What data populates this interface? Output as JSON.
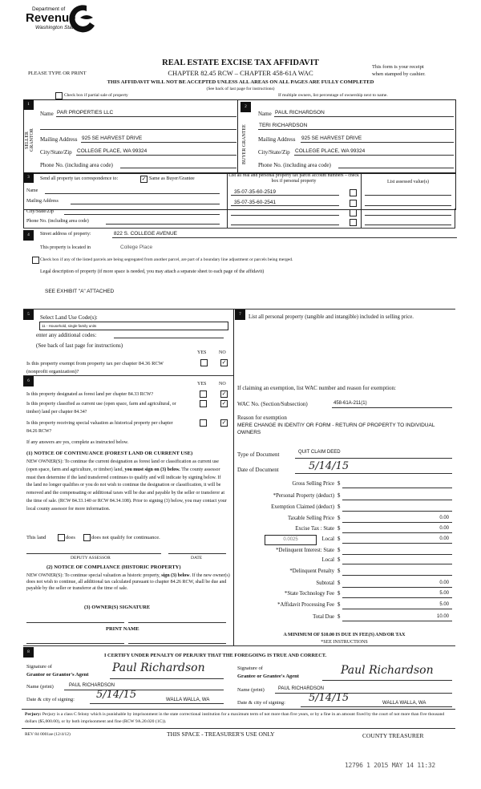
{
  "header": {
    "dept_of": "Department of",
    "revenue": "Revenue",
    "state": "Washington State",
    "title": "REAL ESTATE EXCISE TAX AFFIDAVIT",
    "chapters": "CHAPTER 82.45 RCW – CHAPTER 458-61A WAC",
    "type_or_print": "PLEASE TYPE OR PRINT",
    "receipt": "This form is your receipt",
    "receipt2": "when stamped by cashier.",
    "warning": "THIS AFFIDAVIT WILL NOT BE ACCEPTED UNLESS ALL AREAS ON ALL PAGES ARE FULLY COMPLETED",
    "see_back": "(See back of last page for instructions)",
    "partial_sale": "Check box if partial sale of property",
    "multiple_owners": "If multiple owners, list percentage of ownership next to name."
  },
  "seller": {
    "num": "1",
    "label": "SELLER GRANTOR",
    "name_label": "Name",
    "name": "PAR PROPERTIES LLC",
    "mail_label": "Mailing Address",
    "mail": "925 SE HARVEST DRIVE",
    "city_label": "City/State/Zip",
    "city": "COLLEGE PLACE, WA  99324",
    "phone_label": "Phone No. (including area code)"
  },
  "buyer": {
    "num": "2",
    "label": "BUYER GRANTEE",
    "name_label": "Name",
    "name": "PAUL RICHARDSON",
    "name2": "TERI RICHARDSON",
    "mail_label": "Mailing Address",
    "mail": "925 SE HARVEST DRIVE",
    "city_label": "City/State/Zip",
    "city": "COLLEGE PLACE, WA  99324",
    "phone_label": "Phone No. (including area code)"
  },
  "section3": {
    "num": "3",
    "send_label": "Send all property tax correspondence to:",
    "same_label": "Same as Buyer/Grantee",
    "same_checked": true,
    "name": "Name",
    "mail": "Mailing Address",
    "city": "City/State/Zip",
    "phone": "Phone No. (including area code)",
    "parcel_header": "List all real and personal property tax parcel account numbers – check box if personal property",
    "assessed_header": "List assessed value(s)",
    "parcels": [
      "35-07-35-60-2519",
      "35-07-35-60-2541",
      "",
      ""
    ]
  },
  "section4": {
    "num": "4",
    "street_label": "Street address of property:",
    "street": "822 S. COLLEGE AVENUE",
    "located_label": "This property is located in",
    "located": "College Place",
    "segregated": "Check box if any of the listed parcels are being segregated from another parcel, are part of a boundary line adjustment or parcels being merged.",
    "legal_label": "Legal description of property (if more space is needed, you may attach a separate sheet to each page of the affidavit)",
    "legal": "SEE EXHIBIT \"A\" ATTACHED"
  },
  "section5": {
    "num": "5",
    "select_label": "Select Land Use Code(s):",
    "code": "11 - Household, single family units",
    "additional": "enter any additional codes:",
    "see_back": "(See back of last page for instructions)",
    "yes": "YES",
    "no": "NO",
    "exempt_q": "Is this property exempt from property tax per chapter 84.36 RCW (nonprofit organization)?",
    "exempt_answer": "NO"
  },
  "section6": {
    "num": "6",
    "yes": "YES",
    "no": "NO",
    "q1": "Is this property designated as forest land per chapter 84.33 RCW?",
    "q2": "Is this property classified as current use (open space, farm and agricultural, or timber) land per chapter 84.34?",
    "q3": "Is this property receiving special valuation as historical property per chapter 84.26 RCW?",
    "answers": [
      "NO",
      "NO",
      "NO"
    ],
    "if_any": "If any answers are yes, complete as instructed below.",
    "notice1_title": "(1) NOTICE OF CONTINUANCE (FOREST LAND OR CURRENT USE)",
    "notice1_a": "NEW OWNER(S): To continue the current designation as forest land or classification as current use (open space, farm and agriculture, or timber) land, ",
    "notice1_b": "you must sign on (3) below.",
    "notice1_c": " The county assessor must then determine if the land transferred continues to qualify and will indicate by signing below. If the land no longer qualifies or you do not wish to continue the designation or classification, it will be removed and the compensating or additional taxes will be due and payable by the seller or transferor at the time of sale. (RCW 84.33.140 or RCW 84.34.108). Prior to signing (3) below, you may contact your local county assessor for more information.",
    "this_land": "This land",
    "does": "does",
    "does_not": "does not qualify for continuance.",
    "deputy": "DEPUTY ASSESSOR",
    "date": "DATE",
    "notice2_title": "(2) NOTICE OF COMPLIANCE (HISTORIC PROPERTY)",
    "notice2_a": "NEW OWNER(S): To continue special valuation as historic property, ",
    "notice2_b": "sign (3) below",
    "notice2_c": ". If the new owner(s) does not wish to continue, all additional tax calculated pursuant to chapter 84.26 RCW, shall be due and payable by the seller or transferor at the time of sale.",
    "owner_sig": "(3)  OWNER(S) SIGNATURE",
    "print_name": "PRINT NAME"
  },
  "section7": {
    "num": "7",
    "personal_label": "List all  personal property (tangible and intangible) included in selling price.",
    "exemption_label": "If claiming an exemption, list WAC number and reason for exemption:",
    "wac_label": "WAC No. (Section/Subsection)",
    "wac": "458-61A-211(1)",
    "reason_label": "Reason for exemption",
    "reason": "MERE CHANGE IN IDENTIY OR FORM - RETURN OF PROPERTY TO INDIVIDUAL OWNERS",
    "doc_type_label": "Type of Document",
    "doc_type": "QUIT CLAIM DEED",
    "doc_date_label": "Date of Document",
    "doc_date": "5/14/15",
    "local_rate": "0.0025",
    "fees": [
      {
        "label": "Gross Selling Price",
        "value": ""
      },
      {
        "label": "*Personal Property (deduct)",
        "value": ""
      },
      {
        "label": "Exemption Claimed (deduct)",
        "value": ""
      },
      {
        "label": "Taxable Selling Price",
        "value": "0.00"
      },
      {
        "label": "Excise Tax : State",
        "value": "0.00"
      },
      {
        "label": "Local",
        "value": "0.00"
      },
      {
        "label": "*Delinquent Interest: State",
        "value": ""
      },
      {
        "label": "Local",
        "value": ""
      },
      {
        "label": "*Delinquent Penalty",
        "value": ""
      },
      {
        "label": "Subtotal",
        "value": "0.00"
      },
      {
        "label": "*State Technology Fee",
        "value": "5.00"
      },
      {
        "label": "*Affidavit Processing Fee",
        "value": "5.00"
      },
      {
        "label": "Total Due",
        "value": "10.00"
      }
    ],
    "currency": "$",
    "minimum": "A MINIMUM OF $10.00 IS DUE IN FEE(S) AND/OR TAX",
    "see_instr": "*SEE INSTRUCTIONS"
  },
  "section8": {
    "num": "8",
    "certify": "I CERTIFY UNDER PENALTY OF PERJURY THAT THE FOREGOING IS TRUE AND CORRECT.",
    "sig_of": "Signature of",
    "grantor_agent": "Grantor or Grantor's Agent",
    "grantee_agent": "Grantee or Grantee's Agent",
    "name_print": "Name (print)",
    "grantor_name": "PAUL RICHARDSON",
    "grantee_name": "PAUL RICHARDSON",
    "date_city": "Date & city of signing:",
    "grantor_date": "5/14/15",
    "grantor_city": "WALLA WALLA, WA",
    "grantee_date": "5/14/15",
    "grantee_city": "WALLA WALLA, WA",
    "signature": "Paul Richardson"
  },
  "footer": {
    "perjury_label": "Perjury:",
    "perjury": " Perjury is a class C felony which is punishable by imprisonment in the state correctional institution for a maximum term of not more than five years, or by a fine in an amount fixed by the court of not more than five thousand dollars ($5,000.00), or by both imprisonment and fine (RCW 9A.20.020 (1C)).",
    "rev": "REV 84 0001ae (12/4/12)",
    "treasurer_only": "THIS SPACE - TREASURER'S USE ONLY",
    "county_treasurer": "COUNTY TREASURER",
    "stamp": "12796 1 2015 MAY 14 11:32"
  }
}
